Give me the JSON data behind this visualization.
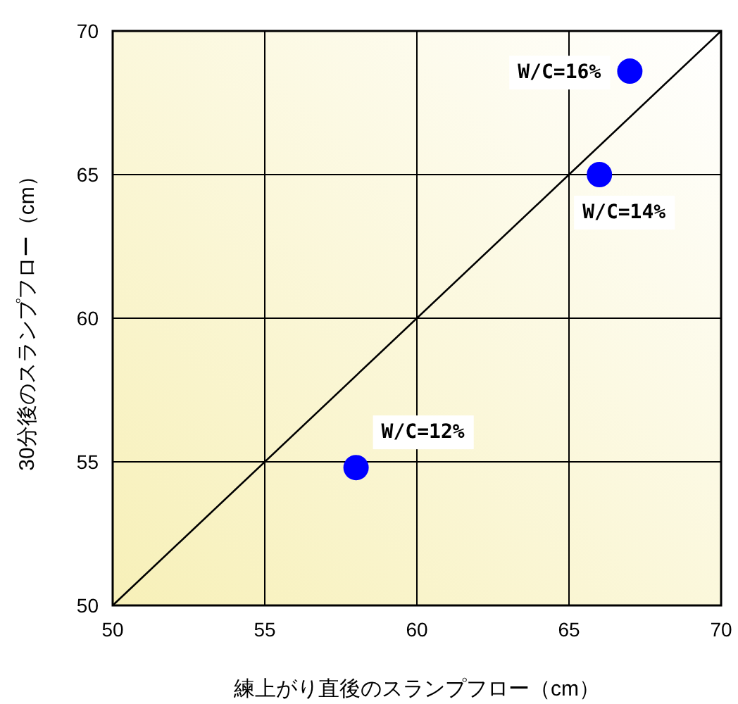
{
  "chart_data": {
    "type": "scatter",
    "xlabel": "練上がり直後のスランプフロー（cm）",
    "ylabel": "30分後のスランプフロー（cm）",
    "xlim": [
      50,
      70
    ],
    "ylim": [
      50,
      70
    ],
    "xticks": [
      50,
      55,
      60,
      65,
      70
    ],
    "yticks": [
      50,
      55,
      60,
      65,
      70
    ],
    "grid": true,
    "marker": "circle",
    "series": [
      {
        "type": "line",
        "color": "#000000",
        "marker": "none",
        "x": [
          50,
          70
        ],
        "values": [
          50,
          70
        ]
      },
      {
        "color": "#0000ff",
        "x": [
          58,
          66,
          67
        ],
        "values": [
          54.8,
          65,
          68.6
        ]
      }
    ],
    "annotations": [
      {
        "text": "W/C=12%",
        "x": 58,
        "y": 54.8
      },
      {
        "text": "W/C=14%",
        "x": 66,
        "y": 65
      },
      {
        "text": "W/C=16%",
        "x": 67,
        "y": 68.6
      }
    ]
  }
}
